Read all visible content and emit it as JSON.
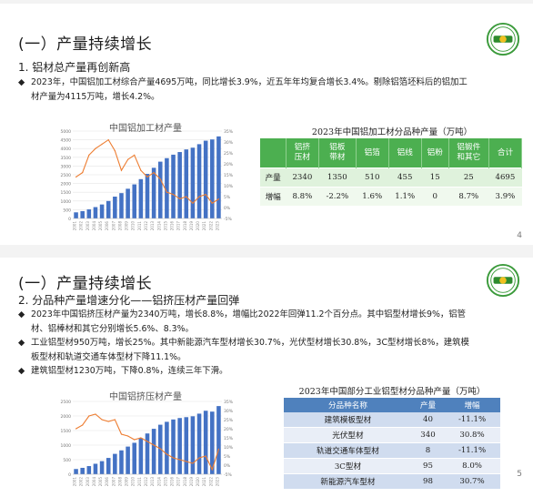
{
  "slide1": {
    "title": "(一）产量持续增长",
    "subtitle": "1. 铝材总产量再创新高",
    "para_line1": "2023年，中国铝加工材综合产量4695万吨，同比增长3.9%，近五年年均复合增长3.4%。剔除铝箔坯料后的铝加工",
    "para_line2": "材产量为4115万吨，增长4.2%。",
    "page": "4",
    "table_title": "2023年中国铝加工材分品种产量（万吨）",
    "table": {
      "headers": [
        "铝挤\n压材",
        "铝板\n带材",
        "铝箔",
        "铝线",
        "铝粉",
        "铝锻件\n和其它",
        "合计"
      ],
      "rows": [
        {
          "label": "产量",
          "values": [
            "2340",
            "1350",
            "510",
            "455",
            "15",
            "25",
            "4695"
          ]
        },
        {
          "label": "增幅",
          "values": [
            "8.8%",
            "-2.2%",
            "1.6%",
            "1.1%",
            "0",
            "8.7%",
            "3.9%"
          ]
        }
      ]
    }
  },
  "slide2": {
    "title": "(一）产量持续增长",
    "subtitle": "2. 分品种产量增速分化——铝挤压材产量回弹",
    "bullets": [
      [
        "2023年中国铝挤压材产量为2340万吨，增长8.8%，增幅比2022年回弹11.2个百分点。其中铝型材增长9%，铝管",
        "材、铝棒材和其它分别增长5.6%、8.3%。"
      ],
      [
        "工业铝型材950万吨，增长25%。其中新能源汽车型材增长30.7%，光伏型材增长30.8%，3C型材增长8%，建筑模",
        "板型材和轨道交通车体型材下降11.1%。"
      ],
      [
        "建筑铝型材1230万吨，下降0.8%，连续三年下滑。"
      ]
    ],
    "page": "5",
    "table_title": "2023年中国部分工业铝型材分品种产量（万吨）",
    "table": {
      "headers": [
        "分品种名称",
        "产量",
        "增幅"
      ],
      "rows": [
        [
          "建筑模板型材",
          "40",
          "-11.1%"
        ],
        [
          "光伏型材",
          "340",
          "30.8%"
        ],
        [
          "轨道交通车体型材",
          "8",
          "-11.1%"
        ],
        [
          "3C型材",
          "95",
          "8.0%"
        ],
        [
          "新能源汽车型材",
          "98",
          "30.7%"
        ]
      ]
    }
  },
  "chart_data": [
    {
      "type": "bar",
      "title": "中国铝加工材产量",
      "xlabel": "",
      "ylabel": "",
      "ylabel2": "",
      "ylim": [
        0,
        5000
      ],
      "y2lim": [
        -5,
        35
      ],
      "yticks": [
        "0",
        "500",
        "1000",
        "1500",
        "2000",
        "2500",
        "3000",
        "3500",
        "4000",
        "4500",
        "5000"
      ],
      "y2ticks": [
        "-5%",
        "0%",
        "5%",
        "10%",
        "15%",
        "20%",
        "25%",
        "30%",
        "35%"
      ],
      "categories": [
        "2001",
        "2002",
        "2003",
        "2004",
        "2005",
        "2006",
        "2007",
        "2008",
        "2009",
        "2010",
        "2011",
        "2012",
        "2013",
        "2014",
        "2015",
        "2016",
        "2017",
        "2018",
        "2019",
        "2020",
        "2021",
        "2022",
        "2023"
      ],
      "series": [
        {
          "type": "bar",
          "color": "#4472c4",
          "values": [
            350,
            420,
            520,
            650,
            800,
            1000,
            1250,
            1450,
            1700,
            1950,
            2250,
            2550,
            2900,
            3250,
            3450,
            3650,
            3800,
            3950,
            4050,
            4250,
            4450,
            4520,
            4695
          ]
        },
        {
          "type": "line",
          "axis": "right",
          "color": "#ed7d31",
          "values": [
            14,
            16,
            24,
            27,
            29,
            31,
            26,
            17,
            22,
            24,
            17,
            14,
            16,
            13,
            7,
            6,
            4,
            5,
            2,
            5,
            6,
            2,
            3.9
          ]
        }
      ]
    },
    {
      "type": "bar",
      "title": "中国铝挤压材产量",
      "xlabel": "",
      "ylabel": "",
      "ylabel2": "",
      "ylim": [
        0,
        2500
      ],
      "y2lim": [
        -5,
        35
      ],
      "yticks": [
        "0",
        "500",
        "1000",
        "1500",
        "2000",
        "2500"
      ],
      "y2ticks": [
        "-5%",
        "0%",
        "5%",
        "10%",
        "15%",
        "20%",
        "25%",
        "30%",
        "35%"
      ],
      "categories": [
        "2001",
        "2002",
        "2003",
        "2004",
        "2005",
        "2006",
        "2007",
        "2008",
        "2009",
        "2010",
        "2011",
        "2012",
        "2013",
        "2014",
        "2015",
        "2016",
        "2017",
        "2018",
        "2019",
        "2020",
        "2021",
        "2022",
        "2023"
      ],
      "series": [
        {
          "type": "bar",
          "color": "#4472c4",
          "values": [
            180,
            220,
            280,
            360,
            450,
            560,
            700,
            820,
            950,
            1080,
            1240,
            1400,
            1560,
            1700,
            1800,
            1880,
            1930,
            1960,
            1990,
            2080,
            2180,
            2150,
            2340
          ]
        },
        {
          "type": "line",
          "axis": "right",
          "color": "#ed7d31",
          "values": [
            20,
            22,
            27,
            28,
            25,
            24,
            25,
            17,
            16,
            14,
            15,
            13,
            11,
            9,
            6,
            4,
            3,
            2,
            1,
            4,
            5,
            -2.4,
            8.8
          ]
        }
      ]
    }
  ]
}
